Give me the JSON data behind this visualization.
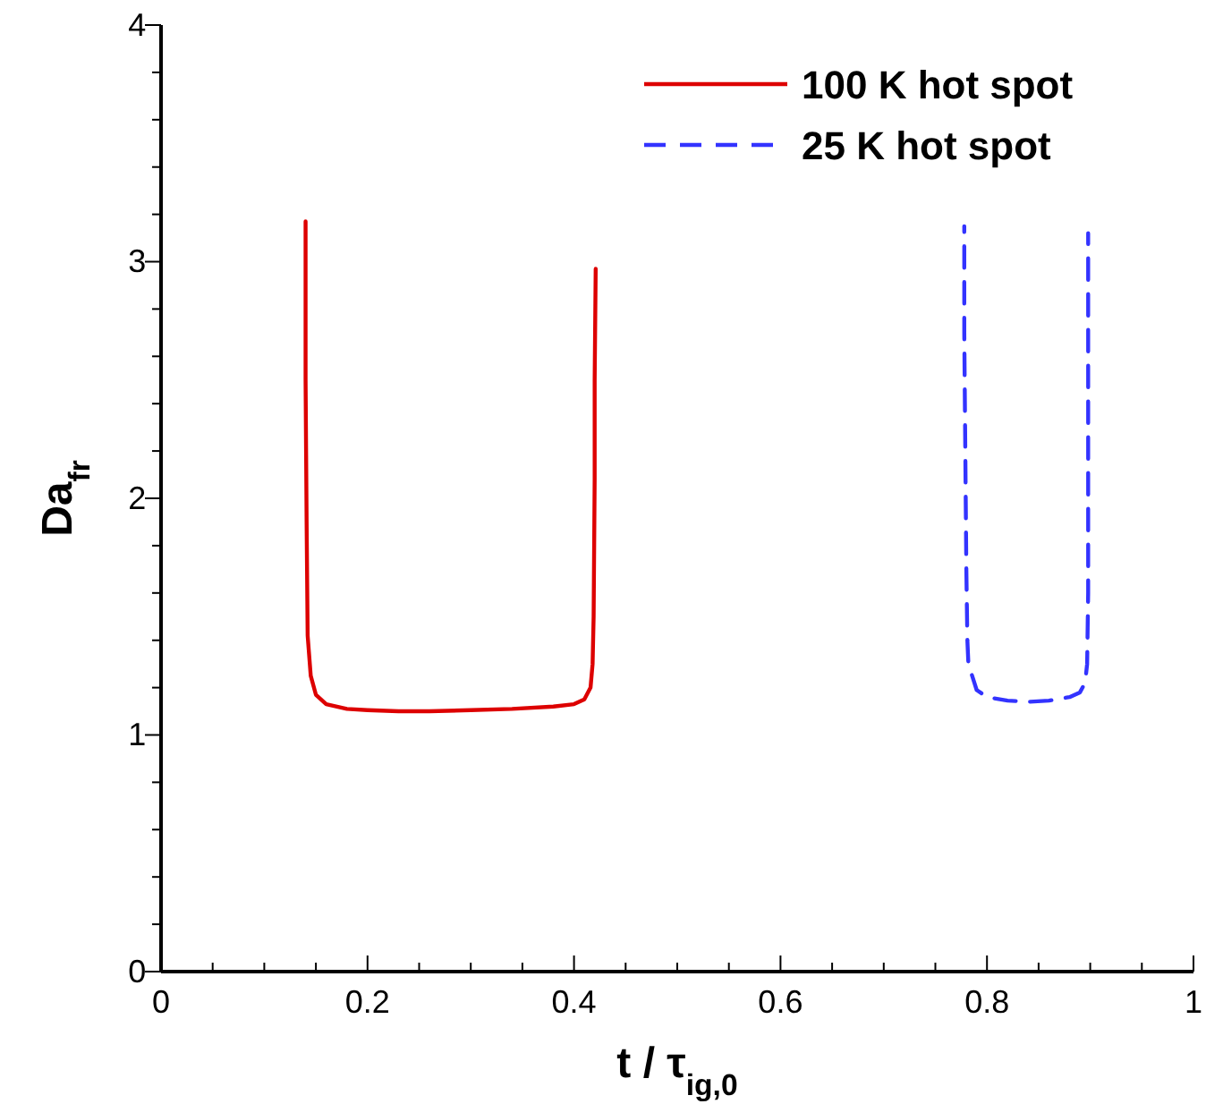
{
  "chart_data": {
    "type": "line",
    "xlabel": "t / τ$_{ig,0}$",
    "ylabel": "Da$_{fr}$",
    "xlim": [
      0,
      1
    ],
    "ylim": [
      0,
      4
    ],
    "xticks": [
      0,
      {
        "value": 0.05,
        "label": null
      },
      {
        "value": 0.1,
        "label": null
      },
      {
        "value": 0.15,
        "label": null
      },
      0.2,
      {
        "value": 0.25,
        "label": null
      },
      {
        "value": 0.3,
        "label": null
      },
      {
        "value": 0.35,
        "label": null
      },
      0.4,
      {
        "value": 0.45,
        "label": null
      },
      {
        "value": 0.5,
        "label": null
      },
      {
        "value": 0.55,
        "label": null
      },
      0.6,
      {
        "value": 0.65,
        "label": null
      },
      {
        "value": 0.7,
        "label": null
      },
      {
        "value": 0.75,
        "label": null
      },
      0.8,
      {
        "value": 0.85,
        "label": null
      },
      {
        "value": 0.9,
        "label": null
      },
      {
        "value": 0.95,
        "label": null
      },
      1
    ],
    "yticks": [
      0,
      {
        "value": 0.2,
        "label": null
      },
      {
        "value": 0.4,
        "label": null
      },
      {
        "value": 0.6,
        "label": null
      },
      {
        "value": 0.8,
        "label": null
      },
      1,
      {
        "value": 1.2,
        "label": null
      },
      {
        "value": 1.4,
        "label": null
      },
      {
        "value": 1.6,
        "label": null
      },
      {
        "value": 1.8,
        "label": null
      },
      2,
      {
        "value": 2.2,
        "label": null
      },
      {
        "value": 2.4,
        "label": null
      },
      {
        "value": 2.6,
        "label": null
      },
      {
        "value": 2.8,
        "label": null
      },
      3,
      {
        "value": 3.2,
        "label": null
      },
      {
        "value": 3.4,
        "label": null
      },
      {
        "value": 3.6,
        "label": null
      },
      {
        "value": 3.8,
        "label": null
      },
      4
    ],
    "grid": false,
    "legend": "top right",
    "marker": "none",
    "series": [
      {
        "name": "100 K hot spot",
        "color": "#dd0000",
        "line_style": "solid",
        "x": [
          0.14,
          0.14,
          0.141,
          0.142,
          0.145,
          0.15,
          0.16,
          0.18,
          0.2,
          0.23,
          0.26,
          0.3,
          0.34,
          0.38,
          0.4,
          0.41,
          0.416,
          0.418,
          0.419,
          0.42,
          0.42,
          0.421
        ],
        "values": [
          3.17,
          2.5,
          1.9,
          1.42,
          1.25,
          1.17,
          1.13,
          1.11,
          1.105,
          1.1,
          1.1,
          1.105,
          1.11,
          1.12,
          1.13,
          1.15,
          1.2,
          1.3,
          1.5,
          2.08,
          2.5,
          2.97
        ]
      },
      {
        "name": "25 K hot spot",
        "color": "#3333ff",
        "line_style": "dashed",
        "x": [
          0.778,
          0.778,
          0.779,
          0.78,
          0.781,
          0.782,
          0.79,
          0.8,
          0.82,
          0.84,
          0.86,
          0.88,
          0.89,
          0.895,
          0.897,
          0.898,
          0.898,
          0.898
        ],
        "values": [
          3.15,
          2.7,
          2.2,
          1.7,
          1.4,
          1.3,
          1.19,
          1.16,
          1.145,
          1.14,
          1.145,
          1.16,
          1.18,
          1.22,
          1.3,
          1.6,
          2.4,
          3.12
        ]
      }
    ]
  }
}
